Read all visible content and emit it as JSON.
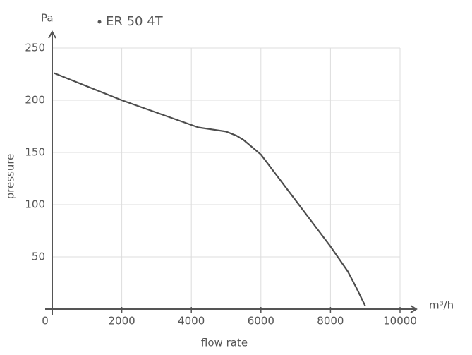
{
  "chart_data": {
    "type": "line",
    "x_unit": "m³/h",
    "y_unit": "Pa",
    "x_label": "flow rate",
    "y_label": "pressure",
    "x": [
      50,
      2000,
      4200,
      4600,
      5000,
      5300,
      5500,
      6000,
      6500,
      7000,
      7500,
      8000,
      8500,
      8750,
      9000
    ],
    "series": [
      {
        "name": "ER 50 4T",
        "color": "#4d4d4d",
        "values": [
          226,
          200,
          174,
          172,
          170,
          166,
          162,
          148,
          126,
          104,
          82,
          60,
          36,
          20,
          3
        ]
      }
    ],
    "xlim": [
      0,
      10000
    ],
    "ylim": [
      0,
      250
    ],
    "xticks": [
      0,
      2000,
      4000,
      6000,
      8000,
      10000
    ],
    "yticks": [
      50,
      100,
      150,
      200,
      250
    ],
    "grid": true
  }
}
